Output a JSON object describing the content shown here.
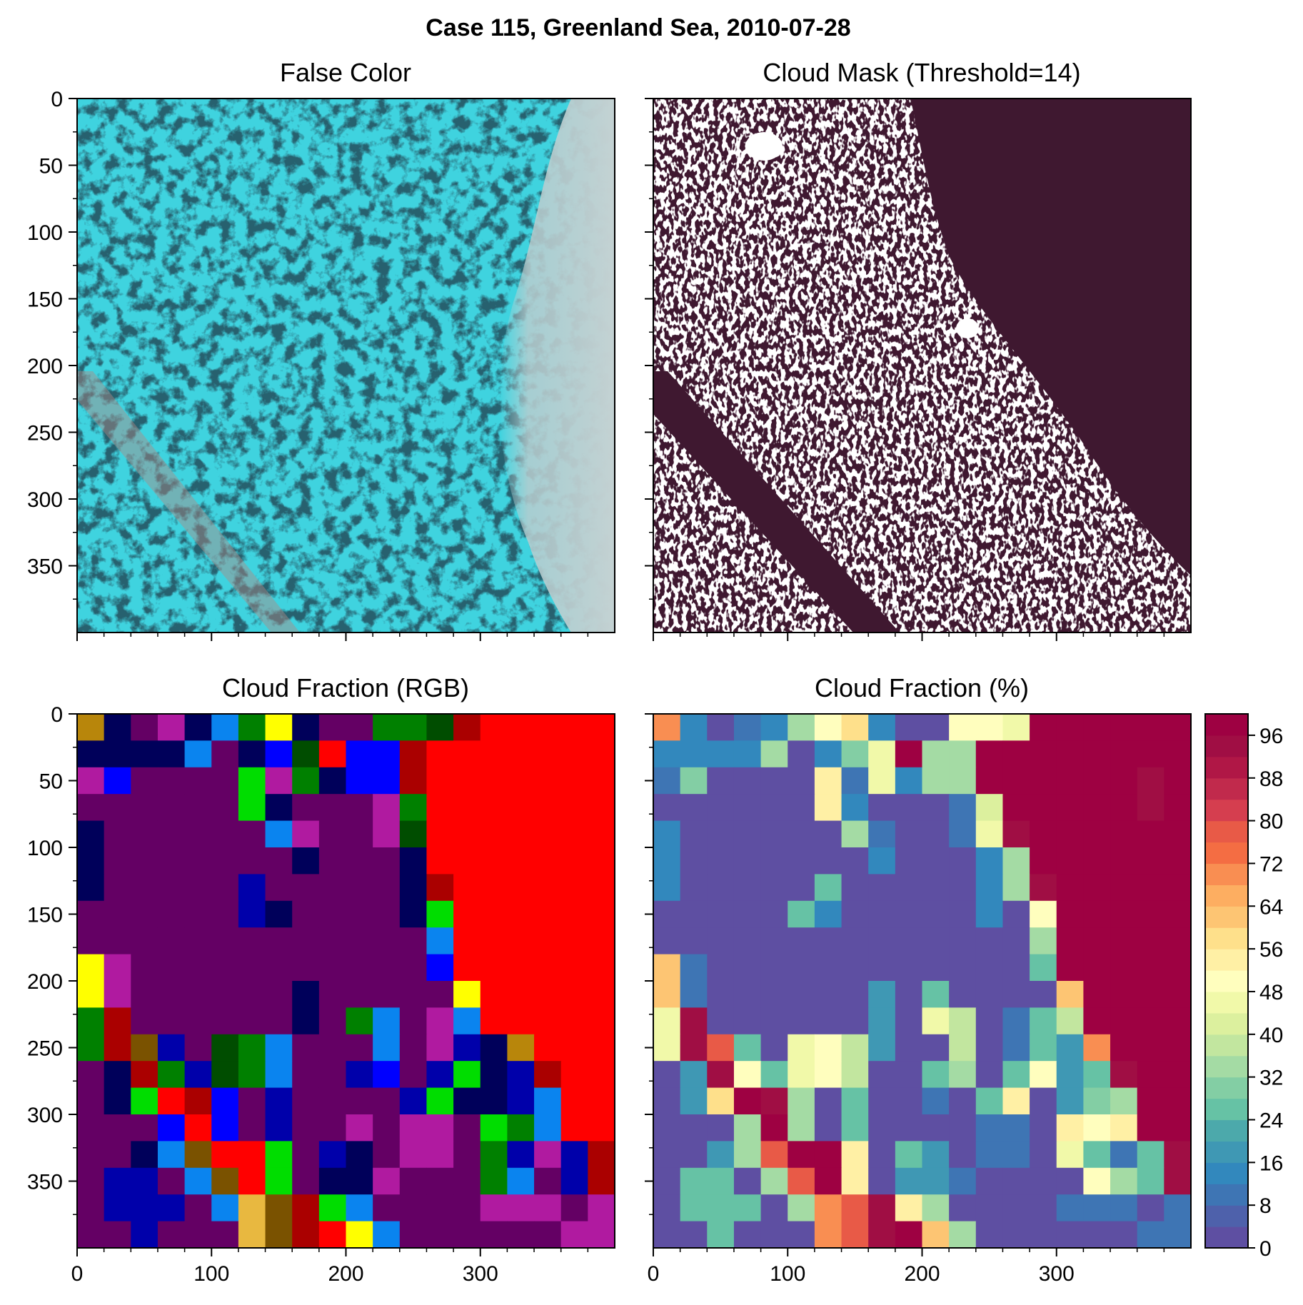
{
  "figure": {
    "title": "Case 115, Greenland Sea, 2010-07-28"
  },
  "chart_data": [
    {
      "type": "image",
      "title": "False Color",
      "description_values": "satellite false-color composite (cyan sea ice, light gray cloud band on right)",
      "y_ticks": [
        0,
        50,
        100,
        150,
        200,
        250,
        300,
        350
      ],
      "x_ticks": [
        0,
        100,
        200,
        300
      ],
      "extent": [
        0,
        400
      ],
      "colors": {
        "ice": "#3fd3df",
        "water": "#0a2a35",
        "cloud": "#b9c8c9"
      }
    },
    {
      "type": "image",
      "title": "Cloud Mask (Threshold=14)",
      "y_ticks": [
        0,
        50,
        100,
        150,
        200,
        250,
        300,
        350
      ],
      "x_ticks": [
        0,
        100,
        200,
        300
      ],
      "extent": [
        0,
        400
      ],
      "colors": {
        "mask": "#3f1830",
        "clear": "#ffffff"
      }
    },
    {
      "type": "heatmap",
      "title": "Cloud Fraction (RGB)",
      "y_ticks": [
        0,
        50,
        100,
        150,
        200,
        250,
        300,
        350
      ],
      "x_ticks": [
        0,
        100,
        200,
        300
      ],
      "extent": [
        0,
        400
      ],
      "grid_rows": 20,
      "grid_cols": 20,
      "cell_size": 20,
      "palette": {
        "P": "#640064",
        "N": "#00005a",
        "B": "#0000aa",
        "U": "#0000ff",
        "K": "#0a84ef",
        "G": "#008000",
        "D": "#004d00",
        "L": "#00dd00",
        "R": "#ff0000",
        "M": "#aa0000",
        "Y": "#ffff00",
        "O": "#b8860b",
        "W": "#7a5200",
        "A": "#b01aa0",
        "T": "#e8b840"
      },
      "cells": [
        "ONPANKGYNPPGGDMRRRRR",
        "NNNNKPNUDRUUMRRRRRRR",
        "AUPPPPLAGNUUMRRRRRRR",
        "PPPPPPLNPPPAGRRRRRRR",
        "NPPPPPPKAPPADRRRRRRR",
        "NPPPPPPPNPPPNRRRRRRR",
        "NPPPPPBPPPPPNMRRRRRR",
        "PPPPPPBNPPPPNLRRRRRR",
        "PPPPPPPPPPPPPKRRRRRR",
        "YAPPPPPPPPPPPURRRRRR",
        "YAPPPPPPNPPPPPYRRRRR",
        "GMPPPPPPNPGKPAKRRRRR",
        "GMWBPDGKPPPKPABNORRR",
        "PNMGBDGKPPBUPBLNBMRR",
        "PNLRMUPBPPPPBLNNBKRR",
        "PPPURUPBPPAPAAPLGKRR",
        "PPNKWRRLPBNPAAPGBABM",
        "PBBPKWRLPNNAPPPGKPBM",
        "PBBBPKTWMLKPPPPAAAPA",
        "PPBPPPTWMRYKPPPPPPAA"
      ]
    },
    {
      "type": "heatmap",
      "title": "Cloud Fraction (%)",
      "y_ticks": [
        0,
        50,
        100,
        150,
        200,
        250,
        300,
        350
      ],
      "x_ticks": [
        0,
        100,
        200,
        300
      ],
      "extent": [
        0,
        400
      ],
      "grid_rows": 20,
      "grid_cols": 20,
      "cell_size": 20,
      "colorbar": {
        "ticks": [
          0,
          8,
          16,
          24,
          32,
          40,
          48,
          56,
          64,
          72,
          80,
          88,
          96
        ],
        "min": 0,
        "max": 100,
        "levels": 25,
        "colors": [
          "#5e4fa2",
          "#4e61ab",
          "#3e75b4",
          "#3288bd",
          "#3f98b4",
          "#4ca9ab",
          "#66c2a5",
          "#83cea4",
          "#a4dba4",
          "#c2e69f",
          "#dcf09e",
          "#f1f9a9",
          "#fffebe",
          "#fff0a5",
          "#fee08b",
          "#fdc573",
          "#fdae61",
          "#f98e52",
          "#f46d43",
          "#e85a47",
          "#d53e4f",
          "#c12a4c",
          "#b01746",
          "#a00e44",
          "#9e0142"
        ]
      },
      "values": [
        [
          70,
          12,
          2,
          10,
          14,
          32,
          48,
          58,
          14,
          2,
          2,
          48,
          48,
          44,
          96,
          100,
          100,
          100,
          100,
          100
        ],
        [
          12,
          12,
          12,
          12,
          32,
          2,
          14,
          28,
          46,
          100,
          32,
          32,
          96,
          100,
          100,
          100,
          100,
          100,
          100,
          100
        ],
        [
          10,
          30,
          2,
          2,
          2,
          2,
          52,
          10,
          46,
          14,
          32,
          32,
          96,
          100,
          100,
          100,
          100,
          100,
          94,
          100
        ],
        [
          2,
          2,
          2,
          2,
          2,
          2,
          52,
          14,
          2,
          2,
          2,
          10,
          42,
          100,
          100,
          100,
          100,
          100,
          94,
          100
        ],
        [
          14,
          2,
          2,
          2,
          2,
          2,
          2,
          34,
          10,
          2,
          2,
          10,
          46,
          94,
          100,
          100,
          100,
          100,
          100,
          100
        ],
        [
          14,
          2,
          2,
          2,
          2,
          2,
          2,
          2,
          14,
          2,
          2,
          2,
          14,
          34,
          100,
          100,
          100,
          100,
          100,
          100
        ],
        [
          14,
          2,
          2,
          2,
          2,
          2,
          24,
          2,
          2,
          2,
          2,
          2,
          14,
          34,
          94,
          100,
          100,
          100,
          100,
          100
        ],
        [
          2,
          2,
          2,
          2,
          2,
          24,
          14,
          2,
          2,
          2,
          2,
          2,
          14,
          2,
          50,
          100,
          100,
          100,
          100,
          100
        ],
        [
          2,
          2,
          2,
          2,
          2,
          2,
          2,
          2,
          2,
          2,
          2,
          2,
          2,
          2,
          34,
          100,
          100,
          100,
          100,
          100
        ],
        [
          60,
          10,
          2,
          2,
          2,
          2,
          2,
          2,
          2,
          2,
          2,
          2,
          2,
          2,
          24,
          100,
          100,
          100,
          100,
          100
        ],
        [
          60,
          10,
          2,
          2,
          2,
          2,
          2,
          2,
          16,
          2,
          24,
          2,
          2,
          2,
          2,
          62,
          100,
          100,
          100,
          100
        ],
        [
          44,
          94,
          2,
          2,
          2,
          2,
          2,
          2,
          16,
          2,
          46,
          36,
          2,
          10,
          24,
          36,
          100,
          100,
          100,
          100
        ],
        [
          44,
          94,
          78,
          24,
          2,
          46,
          48,
          36,
          16,
          2,
          2,
          36,
          2,
          10,
          24,
          16,
          70,
          100,
          100,
          100
        ],
        [
          2,
          16,
          94,
          50,
          24,
          46,
          48,
          36,
          2,
          2,
          24,
          32,
          2,
          24,
          50,
          16,
          24,
          94,
          100,
          100
        ],
        [
          2,
          16,
          56,
          100,
          94,
          34,
          2,
          24,
          2,
          2,
          10,
          2,
          24,
          54,
          2,
          16,
          30,
          32,
          100,
          100
        ],
        [
          2,
          2,
          2,
          32,
          100,
          34,
          2,
          24,
          2,
          2,
          2,
          2,
          10,
          10,
          2,
          54,
          48,
          54,
          100,
          100
        ],
        [
          2,
          2,
          16,
          32,
          78,
          100,
          100,
          54,
          2,
          24,
          16,
          2,
          10,
          10,
          2,
          46,
          24,
          10,
          24,
          94
        ],
        [
          2,
          24,
          24,
          2,
          34,
          78,
          100,
          54,
          2,
          16,
          16,
          10,
          2,
          2,
          2,
          2,
          50,
          34,
          24,
          94
        ],
        [
          2,
          24,
          24,
          24,
          2,
          34,
          70,
          76,
          94,
          54,
          34,
          2,
          2,
          2,
          2,
          10,
          10,
          10,
          2,
          10
        ],
        [
          2,
          2,
          24,
          2,
          2,
          2,
          70,
          76,
          94,
          100,
          60,
          32,
          2,
          2,
          2,
          2,
          2,
          2,
          10,
          10
        ]
      ]
    }
  ]
}
